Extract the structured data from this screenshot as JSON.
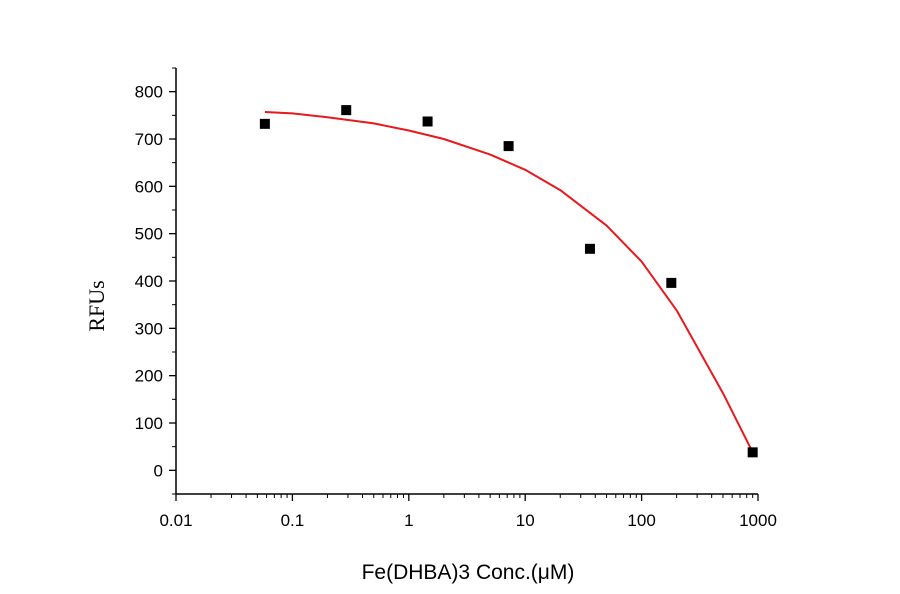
{
  "chart_data": {
    "type": "scatter",
    "title": "",
    "xlabel": "Fe(DHBA)3 Conc.(μM)",
    "ylabel": "RFUs",
    "x_scale": "log",
    "xlim": [
      0.01,
      1000
    ],
    "ylim": [
      -50,
      850
    ],
    "x_ticks": [
      0.01,
      0.1,
      1,
      10,
      100,
      1000
    ],
    "x_tick_labels": [
      "0.01",
      "0.1",
      "1",
      "10",
      "100",
      "1000"
    ],
    "y_ticks": [
      0,
      100,
      200,
      300,
      400,
      500,
      600,
      700,
      800
    ],
    "y_tick_labels": [
      "0",
      "100",
      "200",
      "300",
      "400",
      "500",
      "600",
      "700",
      "800"
    ],
    "grid": false,
    "series": [
      {
        "kind": "points",
        "marker": "square",
        "color": "#000000",
        "x": [
          0.058,
          0.29,
          1.45,
          7.2,
          36,
          180,
          900
        ],
        "y": [
          732,
          761,
          737,
          685,
          468,
          396,
          38
        ]
      },
      {
        "kind": "fit-line",
        "color": "#e8191c",
        "x": [
          0.058,
          0.1,
          0.2,
          0.5,
          1,
          2,
          5,
          10,
          20,
          50,
          100,
          200,
          500,
          900
        ],
        "y": [
          757,
          754,
          746,
          733,
          718,
          700,
          667,
          635,
          592,
          517,
          441,
          338,
          163,
          38
        ]
      }
    ]
  }
}
